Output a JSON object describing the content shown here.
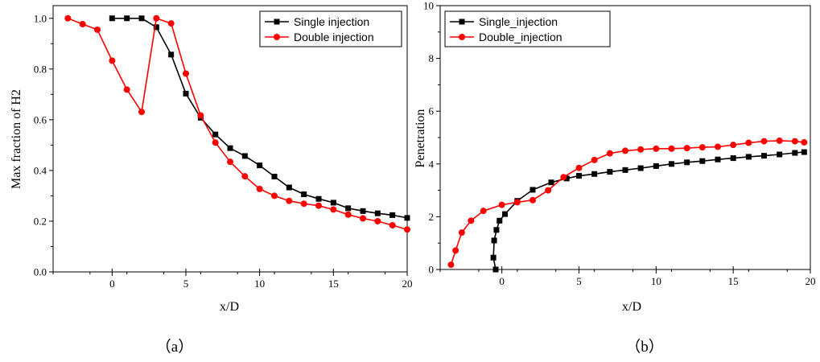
{
  "chart_data": [
    {
      "type": "line",
      "panel_caption": "（a）",
      "xlabel": "x/D",
      "ylabel": "Max fraction of H2",
      "xlim": [
        -4,
        20
      ],
      "ylim": [
        0,
        1.05
      ],
      "xticks": [
        "0",
        "5",
        "10",
        "15",
        "20"
      ],
      "yticks": [
        "0.0",
        "0.2",
        "0.4",
        "0.6",
        "0.8",
        "1.0"
      ],
      "legend_position": "top-right",
      "colors": {
        "single": "#000000",
        "double": "#ff0000"
      },
      "series": [
        {
          "name": "Single injection",
          "marker": "square",
          "x": [
            0,
            1,
            2,
            3,
            4,
            5,
            6,
            7,
            8,
            9,
            10,
            11,
            12,
            13,
            14,
            15,
            16,
            17,
            18,
            19,
            20
          ],
          "y": [
            1.0,
            1.0,
            1.0,
            0.965,
            0.857,
            0.703,
            0.608,
            0.542,
            0.488,
            0.457,
            0.42,
            0.376,
            0.333,
            0.306,
            0.288,
            0.273,
            0.251,
            0.24,
            0.231,
            0.224,
            0.213
          ]
        },
        {
          "name": "Double injection",
          "marker": "circle",
          "x": [
            -3,
            -2,
            -1,
            0,
            1,
            2,
            3,
            4,
            5,
            6,
            7,
            8,
            9,
            10,
            11,
            12,
            13,
            14,
            15,
            16,
            17,
            18,
            19,
            20
          ],
          "y": [
            1.0,
            0.977,
            0.955,
            0.833,
            0.719,
            0.631,
            1.0,
            0.98,
            0.782,
            0.617,
            0.51,
            0.434,
            0.377,
            0.327,
            0.3,
            0.28,
            0.269,
            0.261,
            0.246,
            0.226,
            0.211,
            0.2,
            0.184,
            0.167
          ]
        }
      ]
    },
    {
      "type": "line",
      "panel_caption": "（b）",
      "xlabel": "x/D",
      "ylabel": "Penetration",
      "xlim": [
        -4,
        20
      ],
      "ylim": [
        0,
        10
      ],
      "xticks": [
        "0",
        "5",
        "10",
        "15",
        "20"
      ],
      "yticks": [
        "0",
        "2",
        "4",
        "6",
        "8",
        "10"
      ],
      "legend_position": "top-left",
      "colors": {
        "single": "#000000",
        "double": "#ff0000"
      },
      "series": [
        {
          "name": "Single_injection",
          "marker": "square",
          "x": [
            -0.4,
            -0.55,
            -0.5,
            -0.35,
            -0.15,
            0.2,
            1.0,
            2.0,
            3.2,
            4.2,
            5.0,
            6.0,
            7.0,
            8.0,
            9.0,
            10.0,
            11.0,
            12.0,
            13.0,
            14.0,
            15.0,
            16.0,
            17.0,
            18.0,
            19.0,
            19.6
          ],
          "y": [
            0.0,
            0.45,
            1.1,
            1.5,
            1.85,
            2.1,
            2.6,
            3.02,
            3.3,
            3.45,
            3.55,
            3.62,
            3.7,
            3.77,
            3.84,
            3.92,
            4.0,
            4.06,
            4.11,
            4.17,
            4.22,
            4.27,
            4.31,
            4.36,
            4.42,
            4.45
          ]
        },
        {
          "name": "Double_injection",
          "marker": "circle",
          "x": [
            -3.3,
            -3.0,
            -2.6,
            -2.0,
            -1.2,
            0.0,
            1.0,
            2.0,
            3.0,
            4.0,
            5.0,
            6.0,
            7.0,
            8.0,
            9.0,
            10.0,
            11.0,
            12.0,
            13.0,
            14.0,
            15.0,
            16.0,
            17.0,
            18.0,
            19.0,
            19.6
          ],
          "y": [
            0.18,
            0.72,
            1.4,
            1.85,
            2.22,
            2.45,
            2.55,
            2.63,
            3.0,
            3.5,
            3.85,
            4.15,
            4.4,
            4.5,
            4.55,
            4.58,
            4.58,
            4.6,
            4.63,
            4.65,
            4.72,
            4.8,
            4.86,
            4.88,
            4.86,
            4.82
          ]
        }
      ]
    }
  ]
}
